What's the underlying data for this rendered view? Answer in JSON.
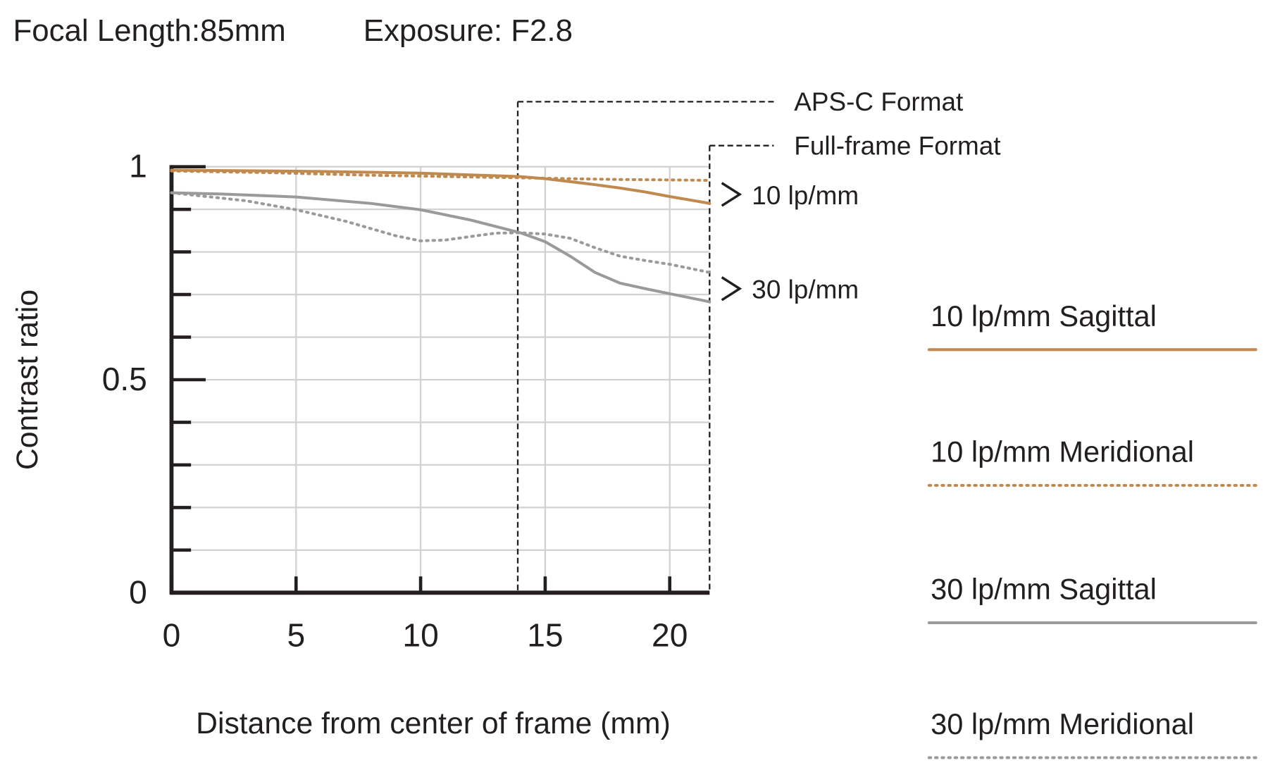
{
  "chart_data": {
    "type": "line",
    "title": "Focal Length:85mm",
    "subtitle": "Exposure: F2.8",
    "xlabel": "Distance from center of frame (mm)",
    "ylabel": "Contrast ratio",
    "xlim": [
      0,
      21.6
    ],
    "ylim": [
      0,
      1
    ],
    "xticks": [
      0,
      5,
      10,
      15,
      20
    ],
    "yticks": [
      0,
      0.5,
      1
    ],
    "minor_yticks": [
      0.1,
      0.2,
      0.3,
      0.4,
      0.6,
      0.7,
      0.8,
      0.9
    ],
    "grid": true,
    "formats": [
      {
        "label": "APS-C Format",
        "x": 13.9
      },
      {
        "label": "Full-frame Format",
        "x": 21.6
      }
    ],
    "annotations": [
      "10 lp/mm",
      "30 lp/mm"
    ],
    "series": [
      {
        "name": "10 lp/mm Sagittal",
        "color": "#c08a4e",
        "dotted": false,
        "x": [
          0,
          2,
          4,
          6,
          8,
          10,
          12,
          14,
          15,
          16,
          17,
          18,
          19,
          20,
          21,
          21.6
        ],
        "values": [
          0.992,
          0.991,
          0.99,
          0.989,
          0.987,
          0.985,
          0.981,
          0.977,
          0.972,
          0.965,
          0.958,
          0.95,
          0.941,
          0.93,
          0.92,
          0.914
        ]
      },
      {
        "name": "10 lp/mm Meridional",
        "color": "#c08a4e",
        "dotted": true,
        "x": [
          0,
          2,
          4,
          6,
          8,
          10,
          12,
          14,
          16,
          18,
          20,
          21.6
        ],
        "values": [
          0.99,
          0.988,
          0.986,
          0.983,
          0.98,
          0.978,
          0.976,
          0.974,
          0.972,
          0.97,
          0.969,
          0.968
        ]
      },
      {
        "name": "30 lp/mm Sagittal",
        "color": "#9a9a9a",
        "dotted": false,
        "x": [
          0,
          2,
          5,
          8,
          10,
          12,
          14,
          15,
          16,
          17,
          18,
          19,
          20,
          21,
          21.6
        ],
        "values": [
          0.939,
          0.936,
          0.929,
          0.914,
          0.899,
          0.875,
          0.845,
          0.824,
          0.79,
          0.752,
          0.727,
          0.714,
          0.702,
          0.69,
          0.683
        ]
      },
      {
        "name": "30 lp/mm Meridional",
        "color": "#9a9a9a",
        "dotted": true,
        "x": [
          0,
          3,
          5,
          7,
          9,
          10,
          11,
          12,
          13,
          14,
          15,
          16,
          17,
          18,
          19,
          20,
          21.6
        ],
        "values": [
          0.939,
          0.92,
          0.899,
          0.872,
          0.838,
          0.826,
          0.828,
          0.836,
          0.844,
          0.845,
          0.842,
          0.832,
          0.81,
          0.79,
          0.78,
          0.771,
          0.752
        ]
      }
    ]
  }
}
